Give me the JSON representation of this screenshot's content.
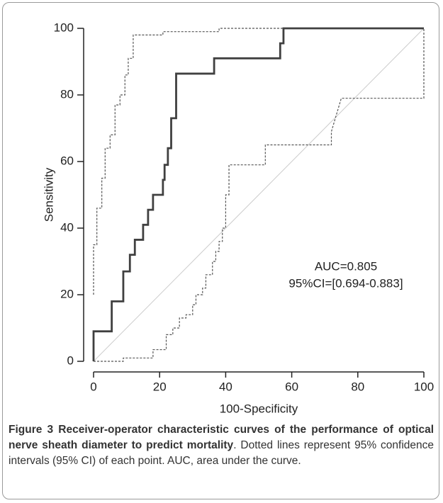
{
  "chart_data": {
    "type": "line",
    "xlabel": "100-Specificity",
    "ylabel": "Sensitivity",
    "xlim": [
      0,
      100
    ],
    "ylim": [
      0,
      100
    ],
    "xticks": [
      0,
      20,
      40,
      60,
      80,
      100
    ],
    "yticks": [
      0,
      20,
      40,
      60,
      80,
      100
    ],
    "annotations": [
      "AUC=0.805",
      "95%CI=[0.694-0.883]"
    ],
    "series": [
      {
        "color": "#cccccc",
        "style": "thin",
        "x": [
          0,
          100
        ],
        "values": [
          0,
          100
        ]
      },
      {
        "color": "#555555",
        "style": "dashed",
        "x": [
          0,
          0,
          1,
          1,
          2.5,
          2.5,
          3.5,
          3.5,
          5,
          5,
          6.5,
          6.5,
          8,
          8,
          9.5,
          9.5,
          10.5,
          10.5,
          12,
          12,
          21,
          21,
          38,
          38,
          100
        ],
        "values": [
          20,
          35,
          35,
          46,
          46,
          55,
          55,
          64,
          64,
          68,
          68,
          77,
          77,
          80,
          80,
          86,
          86,
          91,
          91,
          98,
          98,
          99,
          99,
          100,
          100
        ]
      },
      {
        "color": "#555555",
        "style": "dashed",
        "x": [
          0,
          9,
          9,
          18,
          18,
          22,
          22,
          24,
          24,
          26,
          26,
          28,
          28,
          30,
          30,
          31,
          31,
          33,
          33,
          34,
          34,
          36,
          36,
          37,
          37,
          38,
          38,
          39,
          39,
          40,
          40,
          41,
          41,
          52,
          52,
          72,
          72,
          75,
          100,
          100
        ],
        "values": [
          0,
          0,
          1,
          1,
          3.5,
          3.5,
          8,
          8,
          10,
          10,
          13,
          13,
          14,
          14,
          17,
          17,
          20,
          20,
          22,
          22,
          26,
          26,
          30,
          30,
          33,
          33,
          36,
          36,
          40,
          40,
          50,
          50,
          59,
          59,
          65,
          65,
          69,
          79,
          79,
          100
        ]
      },
      {
        "color": "#404040",
        "style": "bold",
        "x": [
          0,
          0,
          5.5,
          5.5,
          9,
          9,
          11,
          11,
          12.5,
          12.5,
          15,
          15,
          16.5,
          16.5,
          18,
          18,
          21,
          21,
          21.5,
          21.5,
          22.5,
          22.5,
          23.5,
          23.5,
          25,
          25,
          36.5,
          36.5,
          56.5,
          56.5,
          57.5,
          57.5,
          100
        ],
        "values": [
          0,
          9,
          9,
          18,
          18,
          27,
          27,
          32,
          32,
          36.5,
          36.5,
          41,
          41,
          45.5,
          45.5,
          50,
          50,
          54.5,
          54.5,
          59,
          59,
          64,
          64,
          73,
          73,
          86.4,
          86.4,
          91,
          91,
          95.5,
          95.5,
          100,
          100
        ]
      }
    ]
  },
  "caption": {
    "label": "Figure 3",
    "title": "Receiver-operator characteristic curves of the performance of optical nerve sheath diameter to predict mortality",
    "text": ". Dotted lines represent 95% confidence intervals (95% CI) of each point. AUC, area under the curve."
  }
}
